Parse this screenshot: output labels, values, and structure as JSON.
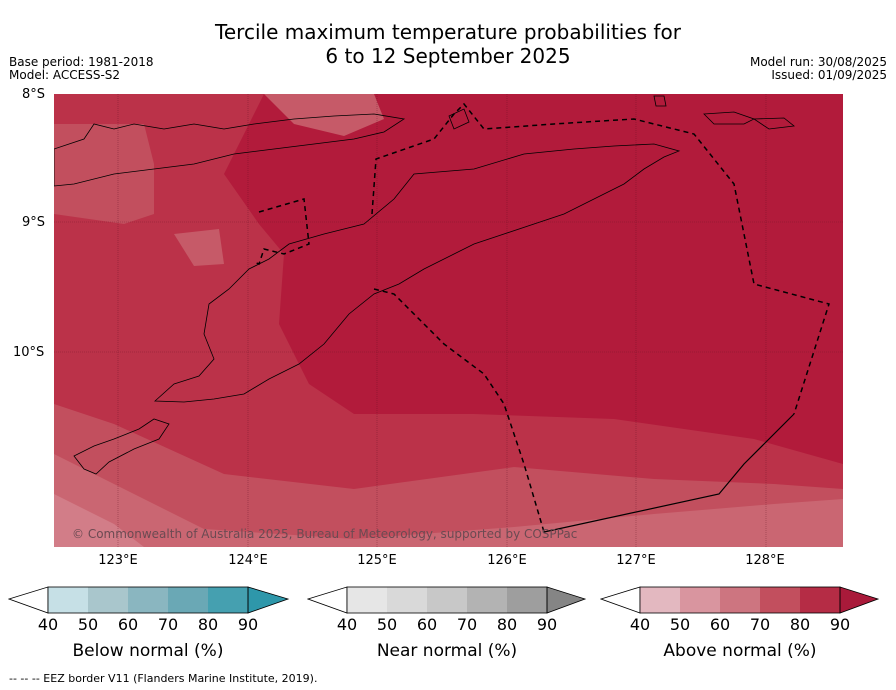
{
  "title_line1": "Tercile maximum temperature probabilities for",
  "title_line2": "6 to 12 September 2025",
  "base_period": "Base period: 1981-2018",
  "model": "Model: ACCESS-S2",
  "model_run": "Model run: 30/08/2025",
  "issued": "Issued: 01/09/2025",
  "lat_labels": [
    "8°S",
    "9°S",
    "10°S"
  ],
  "lon_labels": [
    "123°E",
    "124°E",
    "125°E",
    "126°E",
    "127°E",
    "128°E"
  ],
  "copyright": "© Commonwealth of Australia 2025, Bureau of Meteorology, supported by COSPPac",
  "footnote": "--  --  -- EEZ border V11 (Flanders Marine Institute, 2019).",
  "colorbars": [
    {
      "title": "Below normal (%)",
      "ticks": [
        "40",
        "50",
        "60",
        "70",
        "80",
        "90"
      ],
      "colors": [
        "#c6e0e6",
        "#a9c6cc",
        "#8ab6c0",
        "#6aa8b5",
        "#45a0b0",
        "#2e97aa"
      ]
    },
    {
      "title": "Near normal (%)",
      "ticks": [
        "40",
        "50",
        "60",
        "70",
        "80",
        "90"
      ],
      "colors": [
        "#e6e6e6",
        "#d9d9d9",
        "#c8c8c8",
        "#b3b3b3",
        "#9e9e9e",
        "#858585"
      ]
    },
    {
      "title": "Above normal (%)",
      "ticks": [
        "40",
        "50",
        "60",
        "70",
        "80",
        "90"
      ],
      "colors": [
        "#e3b8c0",
        "#d9959f",
        "#cd7580",
        "#c24f5e",
        "#b52c45",
        "#a91a3a"
      ]
    }
  ]
}
